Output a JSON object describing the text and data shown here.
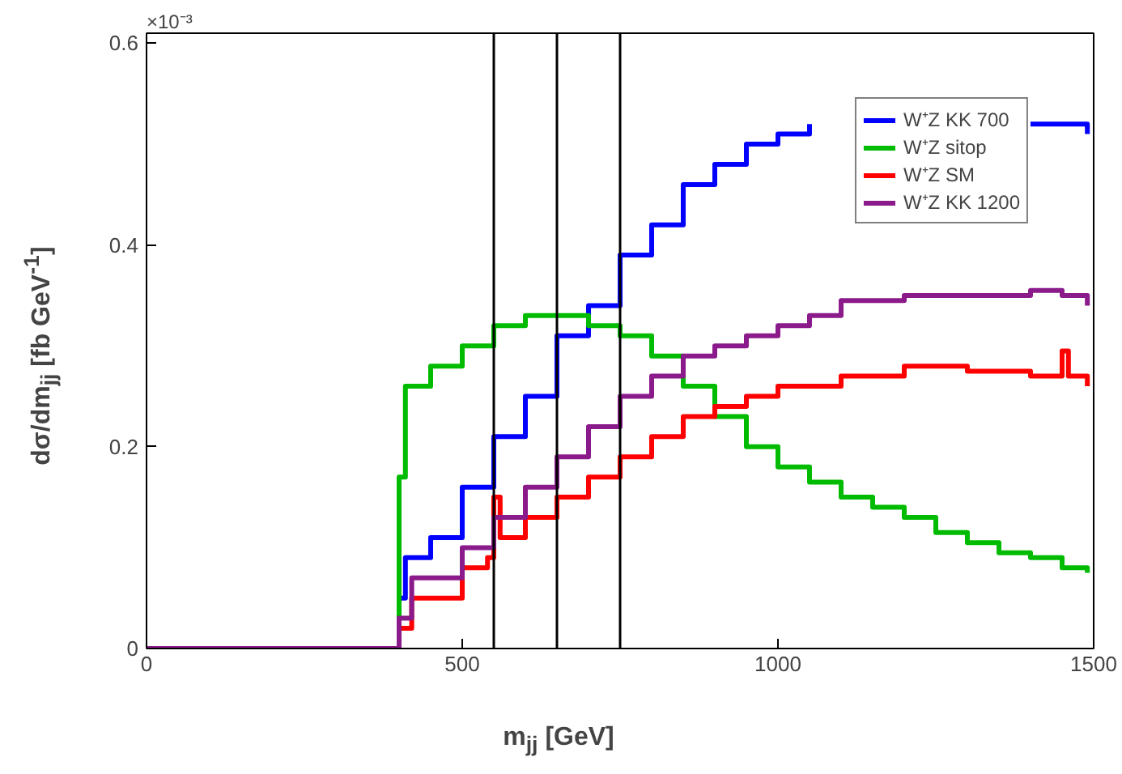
{
  "chart_data": {
    "type": "step",
    "xlabel": "m$_{jj}$ [GeV]",
    "ylabel": "dσ/dm$_{jj}$ [fb GeV$^{-1}$]",
    "annotations": [
      "×10⁻³"
    ],
    "xlim": [
      0,
      1500
    ],
    "ylim": [
      0,
      0.61
    ],
    "xticks": [
      0,
      500,
      1000,
      1500
    ],
    "yticks": [
      0,
      0.2,
      0.4,
      0.6
    ],
    "grid": false,
    "legend": "top right",
    "line_style": "solid",
    "marker": "none",
    "ref_lines": [
      {
        "axis": "x",
        "value": 550,
        "color": "#000000"
      },
      {
        "axis": "x",
        "value": 650,
        "color": "#000000"
      },
      {
        "axis": "x",
        "value": 750,
        "color": "#000000"
      }
    ],
    "series": [
      {
        "name": "W⁺Z KK 700",
        "color": "#0000ff",
        "x": [
          0,
          400,
          410,
          450,
          500,
          550,
          600,
          650,
          700,
          750,
          800,
          850,
          900,
          950,
          1000,
          1050,
          1100,
          1200,
          1300,
          1400,
          1450,
          1490
        ],
        "values": [
          0,
          0.05,
          0.09,
          0.11,
          0.16,
          0.21,
          0.25,
          0.31,
          0.34,
          0.39,
          0.42,
          0.46,
          0.48,
          0.5,
          0.51,
          0.52,
          null,
          null,
          null,
          0.52,
          0.52,
          0.51
        ]
      },
      {
        "name": "W⁺Z sitop",
        "color": "#00bb00",
        "x": [
          0,
          400,
          410,
          450,
          500,
          550,
          600,
          650,
          700,
          750,
          800,
          850,
          900,
          950,
          1000,
          1050,
          1100,
          1150,
          1200,
          1250,
          1300,
          1350,
          1400,
          1450,
          1490
        ],
        "values": [
          0,
          0.17,
          0.26,
          0.28,
          0.3,
          0.32,
          0.33,
          0.33,
          0.32,
          0.31,
          0.29,
          0.26,
          0.23,
          0.2,
          0.18,
          0.165,
          0.15,
          0.14,
          0.13,
          0.115,
          0.105,
          0.095,
          0.09,
          0.08,
          0.075
        ]
      },
      {
        "name": "W⁺Z SM",
        "color": "#ff0000",
        "x": [
          0,
          400,
          420,
          500,
          540,
          550,
          560,
          600,
          650,
          700,
          750,
          800,
          850,
          900,
          950,
          1000,
          1100,
          1200,
          1300,
          1400,
          1450,
          1460,
          1490
        ],
        "values": [
          0,
          0.02,
          0.05,
          0.08,
          0.09,
          0.15,
          0.11,
          0.13,
          0.15,
          0.17,
          0.19,
          0.21,
          0.23,
          0.24,
          0.25,
          0.26,
          0.27,
          0.28,
          0.275,
          0.27,
          0.295,
          0.27,
          0.26
        ]
      },
      {
        "name": "W⁺Z KK 1200",
        "color": "#8b1a8b",
        "x": [
          0,
          400,
          420,
          500,
          550,
          600,
          650,
          700,
          750,
          800,
          850,
          900,
          950,
          1000,
          1050,
          1100,
          1200,
          1300,
          1400,
          1450,
          1490
        ],
        "values": [
          0,
          0.03,
          0.07,
          0.1,
          0.13,
          0.16,
          0.19,
          0.22,
          0.25,
          0.27,
          0.29,
          0.3,
          0.31,
          0.32,
          0.33,
          0.345,
          0.35,
          0.35,
          0.355,
          0.35,
          0.34
        ]
      }
    ]
  }
}
